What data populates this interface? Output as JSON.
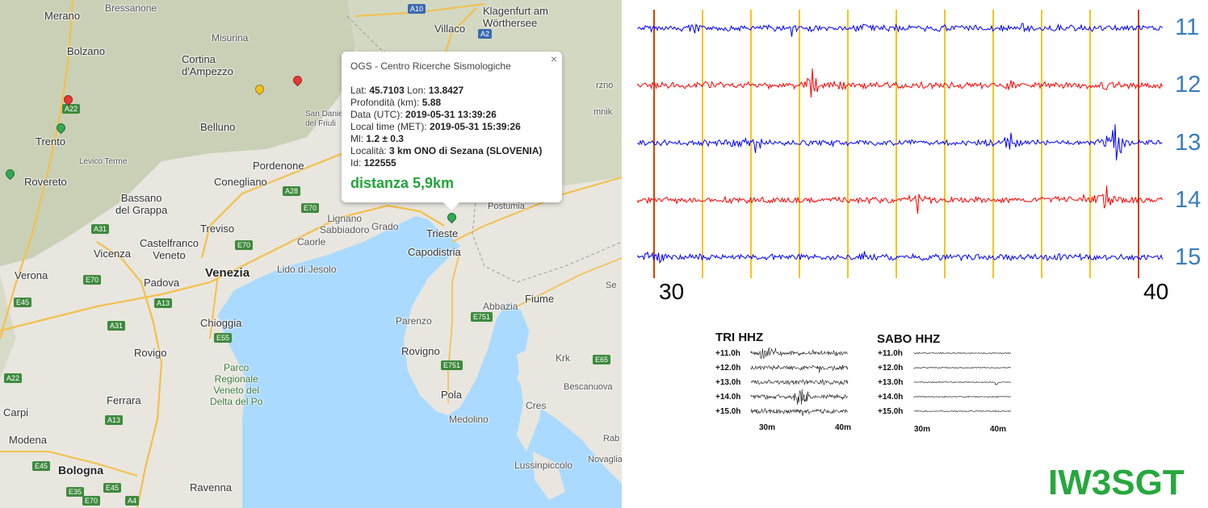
{
  "map": {
    "places": [
      {
        "id": "bressanone",
        "text": "Bressanone"
      },
      {
        "id": "merano",
        "text": "Merano"
      },
      {
        "id": "bolzano",
        "text": "Bolzano"
      },
      {
        "id": "misurina",
        "text": "Misurina"
      },
      {
        "id": "cortina",
        "text": "Cortina\nd'Ampezzo"
      },
      {
        "id": "villaco",
        "text": "Villaco"
      },
      {
        "id": "klagenfurt",
        "text": "Klagenfurt am\nWörthersee"
      },
      {
        "id": "trento",
        "text": "Trento"
      },
      {
        "id": "belluno",
        "text": "Belluno"
      },
      {
        "id": "levico",
        "text": "Levico Terme"
      },
      {
        "id": "rovereto",
        "text": "Rovereto"
      },
      {
        "id": "pordenone",
        "text": "Pordenone"
      },
      {
        "id": "conegliano",
        "text": "Conegliano"
      },
      {
        "id": "bassano",
        "text": "Bassano\ndel Grappa"
      },
      {
        "id": "treviso",
        "text": "Treviso"
      },
      {
        "id": "castelfranco",
        "text": "Castelfranco\nVeneto"
      },
      {
        "id": "lignano",
        "text": "Lignano\nSabbiadoro"
      },
      {
        "id": "grado",
        "text": "Grado"
      },
      {
        "id": "caorle",
        "text": "Caorle"
      },
      {
        "id": "vicenza",
        "text": "Vicenza"
      },
      {
        "id": "venezia",
        "text": "Venezia"
      },
      {
        "id": "lido",
        "text": "Lido di Jesolo"
      },
      {
        "id": "verona",
        "text": "Verona"
      },
      {
        "id": "padova",
        "text": "Padova"
      },
      {
        "id": "trieste",
        "text": "Trieste"
      },
      {
        "id": "capodistria",
        "text": "Capodistria"
      },
      {
        "id": "postumia",
        "text": "Postumia"
      },
      {
        "id": "sandaniele",
        "text": "San Daniele\ndel Friuli"
      },
      {
        "id": "fiume",
        "text": "Fiume"
      },
      {
        "id": "abbazia",
        "text": "Abbazia"
      },
      {
        "id": "parenzo",
        "text": "Parenzo"
      },
      {
        "id": "rovigno",
        "text": "Rovigno"
      },
      {
        "id": "pola",
        "text": "Pola"
      },
      {
        "id": "medolino",
        "text": "Medolino"
      },
      {
        "id": "chioggia",
        "text": "Chioggia"
      },
      {
        "id": "rovigo",
        "text": "Rovigo"
      },
      {
        "id": "parco",
        "text": "Parco\nRegionale\nVeneto del\nDelta del Po"
      },
      {
        "id": "ferrara",
        "text": "Ferrara"
      },
      {
        "id": "carpi",
        "text": "Carpi"
      },
      {
        "id": "modena",
        "text": "Modena"
      },
      {
        "id": "bologna",
        "text": "Bologna"
      },
      {
        "id": "ravenna",
        "text": "Ravenna"
      },
      {
        "id": "krk",
        "text": "Krk"
      },
      {
        "id": "cres",
        "text": "Cres"
      },
      {
        "id": "besca",
        "text": "Bescanuova"
      },
      {
        "id": "lussino",
        "text": "Lussinpiccolo"
      },
      {
        "id": "novaglia",
        "text": "Novaglia"
      },
      {
        "id": "senj",
        "text": "Se"
      },
      {
        "id": "rab",
        "text": "Rab"
      },
      {
        "id": "mnik",
        "text": "mnik"
      },
      {
        "id": "brzno",
        "text": "rzno"
      }
    ],
    "roads": [
      "A10",
      "A2",
      "A22",
      "A28",
      "E70",
      "A31",
      "E70",
      "E70",
      "E45",
      "A13",
      "A31",
      "E55",
      "E751",
      "E751",
      "A22",
      "A13",
      "E45",
      "E45",
      "E35",
      "E65",
      "A4",
      "E70"
    ],
    "popup": {
      "org": "OGS - Centro Ricerche Sismologiche",
      "close": "×",
      "lat_label": "Lat:",
      "lat": "45.7103",
      "lon_label": "Lon:",
      "lon": "13.8427",
      "depth_label": "Profondità (km):",
      "depth": "5.88",
      "utc_label": "Data (UTC):",
      "utc": "2019-05-31 13:39:26",
      "local_label": "Local time (MET):",
      "local": "2019-05-31 15:39:26",
      "ml_label": "Ml:",
      "ml": "1.2 ± 0.3",
      "loc_label": "Località:",
      "loc": "3 km ONO di Sezana (SLOVENIA)",
      "id_label": "Id:",
      "id": "122555",
      "distance": "distanza 5,9km"
    },
    "colors": {
      "land": "#e8e6df",
      "mountains": "#c8cfb4",
      "sea": "#aadaff",
      "motorway": "#f3c04b",
      "pin_green": "#34a853",
      "pin_red": "#e53935",
      "pin_yellow": "#f2c21b"
    }
  },
  "helicorder": {
    "channels": [
      "11",
      "12",
      "13",
      "14",
      "15"
    ],
    "channel_colors": [
      "#0000ff",
      "#ff0000",
      "#0000ff",
      "#ff0000",
      "#0000ff"
    ],
    "time_start": "30",
    "time_end": "40",
    "colors": {
      "grid_minor": "#f5c518",
      "grid_major": "#cc4400",
      "label": "#3a7dc0"
    }
  },
  "panels": [
    {
      "title": "TRI HHZ",
      "hours": [
        "+11.0h",
        "+12.0h",
        "+13.0h",
        "+14.0h",
        "+15.0h"
      ],
      "xticks": [
        "30m",
        "40m"
      ]
    },
    {
      "title": "SABO HHZ",
      "hours": [
        "+11.0h",
        "+12.0h",
        "+13.0h",
        "+14.0h",
        "+15.0h"
      ],
      "xticks": [
        "30m",
        "40m"
      ]
    }
  ],
  "callsign": "IW3SGT"
}
